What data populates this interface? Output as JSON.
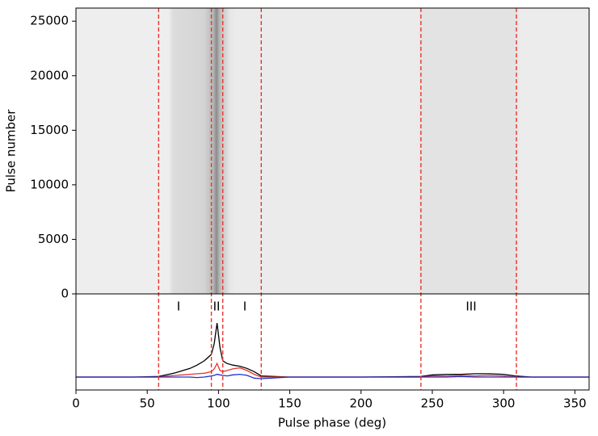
{
  "chart_data": [
    {
      "type": "image",
      "ylabel": "Pulse number",
      "xlim": [
        0,
        360
      ],
      "ylim": [
        0,
        26200
      ],
      "yticks": [
        0,
        5000,
        10000,
        15000,
        20000,
        25000
      ]
    },
    {
      "type": "line",
      "xlabel": "Pulse phase (deg)",
      "xlim": [
        0,
        360
      ],
      "ylim": [
        -0.24,
        1.54
      ],
      "xticks": [
        0,
        50,
        100,
        150,
        200,
        250,
        300,
        350
      ],
      "vlines": [
        58,
        95,
        103,
        130,
        242,
        309
      ],
      "vline_color": "#e8352b",
      "annotations": [
        "I",
        "II",
        "I",
        "III"
      ],
      "x": [
        0,
        20,
        40,
        58,
        65,
        70,
        75,
        80,
        85,
        90,
        95,
        97,
        99,
        101,
        103,
        106,
        110,
        115,
        120,
        125,
        130,
        150,
        200,
        242,
        250,
        260,
        270,
        280,
        290,
        300,
        308,
        320,
        340,
        360
      ],
      "series": [
        {
          "color": "#000000",
          "values": [
            0,
            0,
            0,
            0.01,
            0.05,
            0.08,
            0.12,
            0.16,
            0.22,
            0.3,
            0.42,
            0.62,
            1.0,
            0.55,
            0.3,
            0.25,
            0.22,
            0.2,
            0.16,
            0.1,
            0.02,
            0,
            0,
            0.01,
            0.04,
            0.05,
            0.05,
            0.06,
            0.06,
            0.05,
            0.02,
            0,
            0,
            0
          ]
        },
        {
          "color": "#e8352b",
          "values": [
            0,
            0,
            0,
            0,
            0.02,
            0.03,
            0.04,
            0.05,
            0.06,
            0.07,
            0.1,
            0.15,
            0.25,
            0.12,
            0.1,
            0.12,
            0.15,
            0.17,
            0.12,
            0.05,
            0,
            0,
            0,
            0,
            0.02,
            0.02,
            0.03,
            0.02,
            0.03,
            0.02,
            0,
            0,
            0,
            0
          ]
        },
        {
          "color": "#2030d0",
          "values": [
            0,
            0,
            0,
            0,
            0,
            0,
            0,
            0,
            -0.01,
            0,
            0.02,
            0.03,
            0.05,
            0.04,
            0.03,
            0.02,
            0.04,
            0.05,
            0.03,
            -0.02,
            -0.03,
            0,
            0,
            0,
            0,
            0,
            0.01,
            0,
            0,
            0,
            0,
            0,
            0,
            0
          ]
        }
      ]
    }
  ]
}
